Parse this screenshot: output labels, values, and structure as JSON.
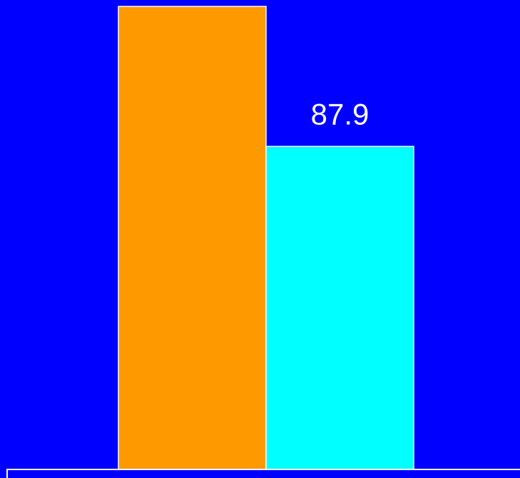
{
  "chart_data": {
    "type": "bar",
    "values": [
      126,
      87.9
    ],
    "colors": [
      "#ff9900",
      "#00ffff"
    ]
  }
}
